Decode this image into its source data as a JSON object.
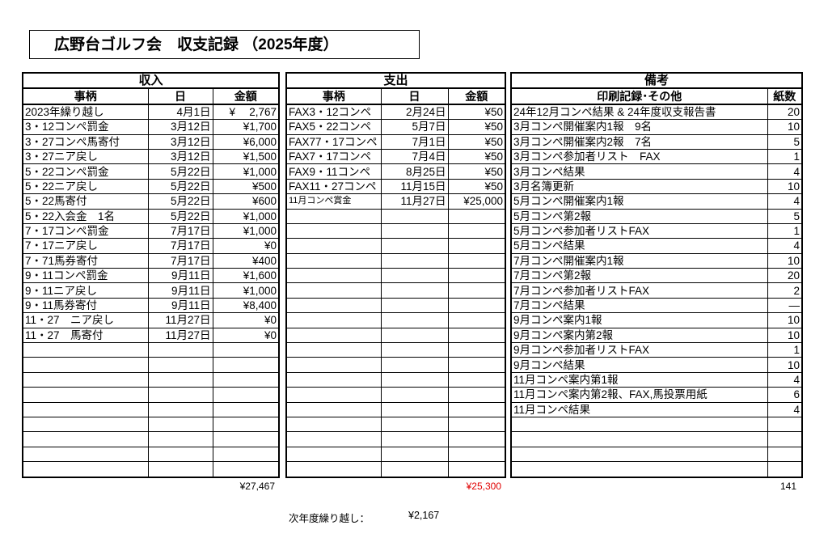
{
  "title": "広野台ゴルフ会　収支記録 （2025年度）",
  "income": {
    "heading": "収入",
    "columns": [
      "事柄",
      "日",
      "金額"
    ],
    "rows": [
      [
        "2023年繰り越し",
        "4月1日",
        "¥　 2,767"
      ],
      [
        "3・12コンペ罰金",
        "3月12日",
        "¥1,700"
      ],
      [
        "3・27コンペ馬寄付",
        "3月12日",
        "¥6,000"
      ],
      [
        "3・27ニア戻し",
        "3月12日",
        "¥1,500"
      ],
      [
        "5・22コンペ罰金",
        "5月22日",
        "¥1,000"
      ],
      [
        "5・22ニア戻し",
        "5月22日",
        "¥500"
      ],
      [
        "5・22馬寄付",
        "5月22日",
        "¥600"
      ],
      [
        "5・22入会金　1名",
        "5月22日",
        "¥1,000"
      ],
      [
        "7・17コンペ罰金",
        "7月17日",
        "¥1,000"
      ],
      [
        "7・17ニア戻し",
        "7月17日",
        "¥0"
      ],
      [
        "7・71馬券寄付",
        "7月17日",
        "¥400"
      ],
      [
        "9・11コンペ罰金",
        "9月11日",
        "¥1,600"
      ],
      [
        "9・11ニア戻し",
        "9月11日",
        "¥1,000"
      ],
      [
        "9・11馬券寄付",
        "9月11日",
        "¥8,400"
      ],
      [
        "11・27　ニア戻し",
        "11月27日",
        "¥0"
      ],
      [
        "11・27　馬寄付",
        "11月27日",
        "¥0"
      ]
    ],
    "total": "¥27,467"
  },
  "expense": {
    "heading": "支出",
    "columns": [
      "事柄",
      "日",
      "金額"
    ],
    "rows": [
      [
        "FAX3・12コンペ",
        "2月24日",
        "¥50"
      ],
      [
        "FAX5・22コンペ",
        "5月7日",
        "¥50"
      ],
      [
        "FAX77・17コンペ",
        "7月1日",
        "¥50"
      ],
      [
        "FAX7・17コンペ",
        "7月4日",
        "¥50"
      ],
      [
        "FAX9・11コンペ",
        "8月25日",
        "¥50"
      ],
      [
        "FAX11・27コンペ",
        "11月15日",
        "¥50"
      ],
      [
        "11月コンペ賞金",
        "11月27日",
        "¥25,000"
      ]
    ],
    "total": "¥25,300",
    "total_color": "#e00000"
  },
  "notes": {
    "heading": "備考",
    "columns": [
      "印刷記録･その他",
      "紙数"
    ],
    "rows": [
      [
        "24年12月コンペ結果 & 24年度収支報告書",
        "20"
      ],
      [
        "3月コンペ開催案内1報　9名",
        "10"
      ],
      [
        "3月コンペ開催案内2報　7名",
        "5"
      ],
      [
        "3月コンペ参加者リスト　FAX",
        "1"
      ],
      [
        "3月コンペ結果",
        "4"
      ],
      [
        "3月名簿更新",
        "10"
      ],
      [
        "5月コンペ開催案内1報",
        "4"
      ],
      [
        "5月コンペ第2報",
        "5"
      ],
      [
        "5月コンペ参加者リストFAX",
        "1"
      ],
      [
        "5月コンペ結果",
        "4"
      ],
      [
        "7月コンペ開催案内1報",
        "10"
      ],
      [
        "7月コンペ第2報",
        "20"
      ],
      [
        "7月コンペ参加者リストFAX",
        "2"
      ],
      [
        "7月コンペ結果",
        "―"
      ],
      [
        "9月コンペ案内1報",
        "10"
      ],
      [
        "9月コンペ案内第2報",
        "10"
      ],
      [
        "9月コンペ参加者リストFAX",
        "1"
      ],
      [
        "9月コンペ結果",
        "10"
      ],
      [
        "11月コンペ案内第1報",
        "4"
      ],
      [
        "11月コンペ案内第2報、FAX,馬投票用紙",
        "6"
      ],
      [
        "11月コンペ結果",
        "4"
      ]
    ],
    "total": "141"
  },
  "carry_over": {
    "label": "次年度繰り越し：",
    "value": "¥2,167"
  }
}
